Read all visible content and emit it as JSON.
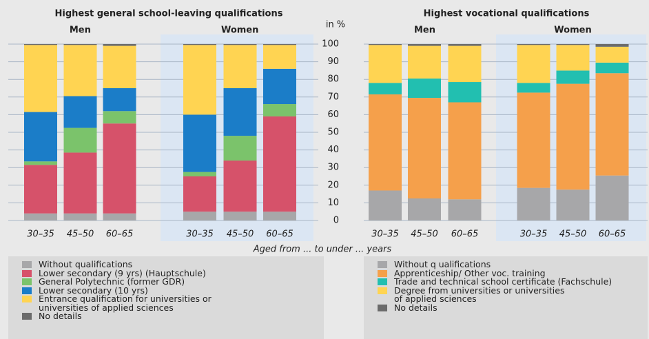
{
  "chart_data": [
    {
      "type": "stacked_bar",
      "title": "Highest general school-leaving qualifications",
      "groups": [
        "Men",
        "Women"
      ],
      "categories": [
        "30–35",
        "45–50",
        "60–65",
        "30–35",
        "45–50",
        "60–65"
      ],
      "ylabel": "in %",
      "xlabel": "Aged from ... to under ... years",
      "ylim": [
        0,
        100
      ],
      "yticks": [
        0,
        10,
        20,
        30,
        40,
        50,
        60,
        70,
        80,
        90,
        100
      ],
      "grid": true,
      "series": [
        {
          "name": "Without qualifications",
          "color": "#a7a7a9",
          "values": [
            4,
            4,
            4,
            5,
            5,
            5
          ]
        },
        {
          "name": "Lower secondary (9 yrs) (Hauptschule)",
          "color": "#d6526a",
          "values": [
            27.5,
            34.5,
            51,
            20,
            29,
            54
          ]
        },
        {
          "name": "General Polytechnic (former GDR)",
          "color": "#7bc36b",
          "values": [
            2,
            14,
            7,
            2.5,
            14,
            7
          ]
        },
        {
          "name": "Lower secondary (10 yrs)",
          "color": "#1b7dc8",
          "values": [
            28,
            18,
            13,
            32.5,
            27,
            20
          ]
        },
        {
          "name": "Entrance qualification for universities or\nuniversities of applied sciences",
          "color": "#ffd452",
          "values": [
            38,
            29,
            24,
            39.5,
            24.5,
            13.5
          ]
        },
        {
          "name": "No details",
          "color": "#6b6b6b",
          "values": [
            0.5,
            0.5,
            1,
            0.5,
            0.5,
            0.5
          ]
        }
      ]
    },
    {
      "type": "stacked_bar",
      "title": "Highest vocational qualifications",
      "groups": [
        "Men",
        "Women"
      ],
      "categories": [
        "30–35",
        "45–50",
        "60–65",
        "30–35",
        "45–50",
        "60–65"
      ],
      "ylim": [
        0,
        100
      ],
      "yticks": [
        0,
        10,
        20,
        30,
        40,
        50,
        60,
        70,
        80,
        90,
        100
      ],
      "grid": true,
      "series": [
        {
          "name": "Without q ualifications",
          "color": "#a7a7a9",
          "values": [
            17,
            12.5,
            12,
            18.5,
            17.5,
            25.5
          ]
        },
        {
          "name": "Apprenticeship/ Other voc. training",
          "color": "#f5a04b",
          "values": [
            54.5,
            57,
            55,
            54,
            60,
            58
          ]
        },
        {
          "name": "Trade and technical school certificate (Fachschule)",
          "color": "#22bfb0",
          "values": [
            6.5,
            11,
            11.5,
            5.5,
            7.5,
            6
          ]
        },
        {
          "name": "Degree from universities or universities\nof applied sciences",
          "color": "#ffd452",
          "values": [
            21.5,
            18.5,
            20.5,
            21.5,
            14.5,
            9
          ]
        },
        {
          "name": "No details",
          "color": "#6b6b6b",
          "values": [
            0.5,
            1,
            1,
            0.5,
            0.5,
            1.5
          ]
        }
      ]
    }
  ]
}
